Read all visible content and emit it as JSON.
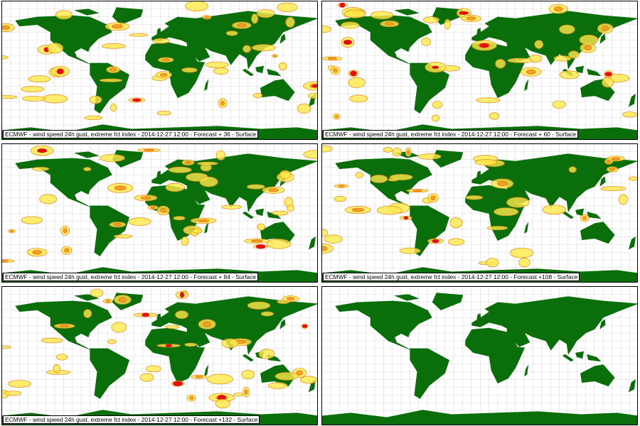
{
  "panels": [
    {
      "caption": "ECMWF - wind speed 24h gust, extreme fct index - 2014-12-27 12:00 - Forecast + 36 - Surface"
    },
    {
      "caption": "ECMWF - wind speed 24h gust, extreme fct index - 2014-12-27 12:00 - Forecast + 60 - Surface"
    },
    {
      "caption": "ECMWF - wind speed 24h gust, extreme fct index - 2014-12-27 12:00 - Forecast + 84 - Surface"
    },
    {
      "caption": "ECMWF - wind speed 24h gust, extreme fct index - 2014-12-27 12:00 - Forecast +108 - Surface"
    },
    {
      "caption": "ECMWF - wind speed 24h gust, extreme fct index - 2014-12-27 12:00 - Forecast +132 - Surface"
    }
  ]
}
